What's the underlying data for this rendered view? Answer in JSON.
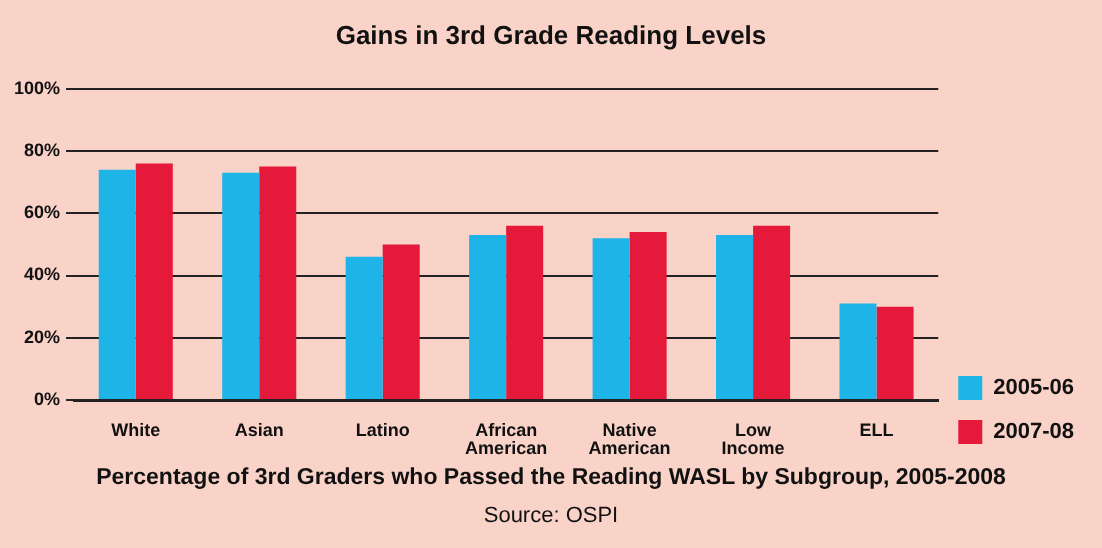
{
  "chart_data": {
    "type": "bar",
    "title": "Gains in 3rd Grade Reading Levels",
    "xlabel": "Percentage of 3rd Graders who Passed the Reading WASL by Subgroup, 2005-2008",
    "annotations": [
      "Source: OSPI"
    ],
    "categories": [
      "White",
      "Asian",
      "Latino",
      "African American",
      "Native American",
      "Low Income",
      "ELL"
    ],
    "series": [
      {
        "name": "2005-06",
        "color": "#1eb4e8",
        "values": [
          74,
          73,
          46,
          53,
          52,
          53,
          31
        ]
      },
      {
        "name": "2007-08",
        "color": "#e5193a",
        "values": [
          76,
          75,
          50,
          56,
          54,
          56,
          30
        ]
      }
    ],
    "ylim": [
      0,
      100
    ],
    "yticks": [
      {
        "value": 0,
        "label": "0%"
      },
      {
        "value": 20,
        "label": "20%"
      },
      {
        "value": 40,
        "label": "40%"
      },
      {
        "value": 60,
        "label": "60%"
      },
      {
        "value": 80,
        "label": "80%"
      },
      {
        "value": 100,
        "label": "100%"
      }
    ],
    "grid": "y",
    "legend": "bottom right"
  }
}
